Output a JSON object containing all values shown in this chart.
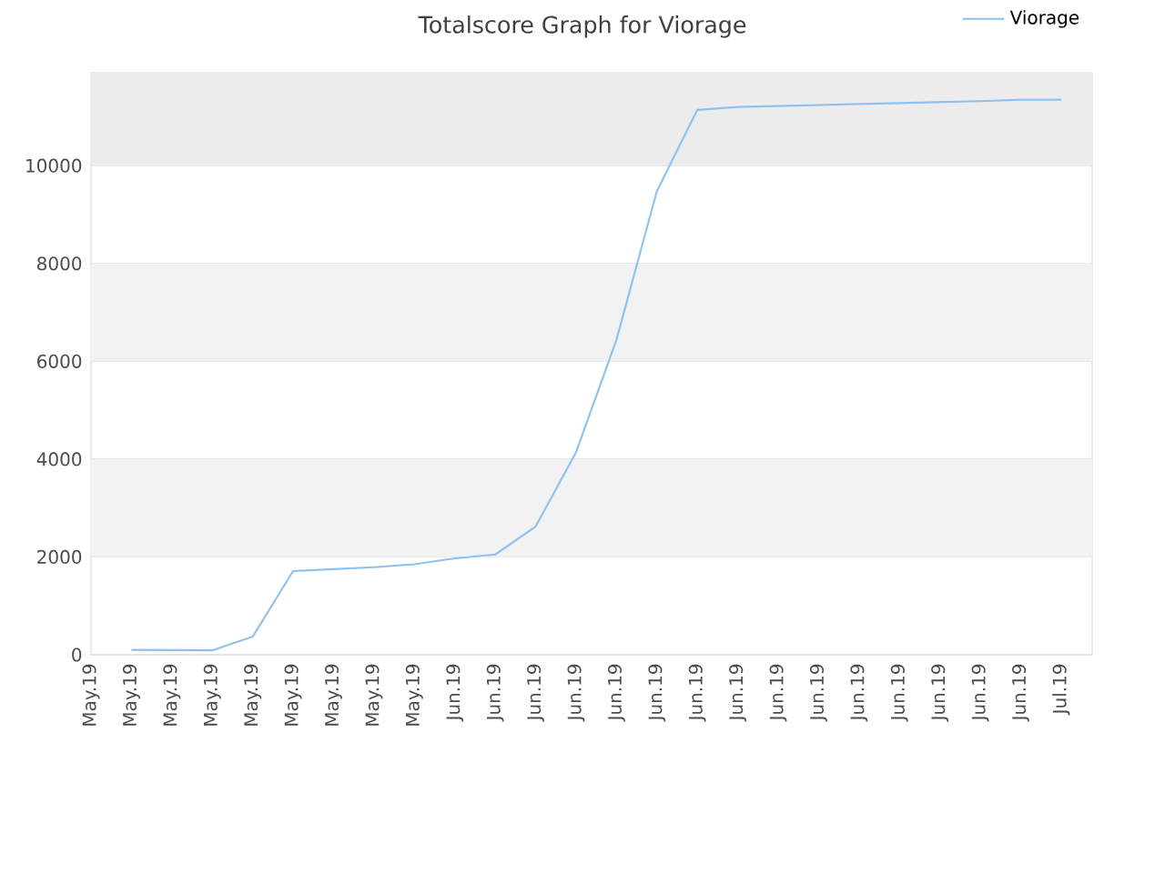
{
  "chart_data": {
    "type": "line",
    "title": "Totalscore Graph for Viorage",
    "categories": [
      "May.19",
      "May.19",
      "May.19",
      "May.19",
      "May.19",
      "May.19",
      "May.19",
      "May.19",
      "May.19",
      "Jun.19",
      "Jun.19",
      "Jun.19",
      "Jun.19",
      "Jun.19",
      "Jun.19",
      "Jun.19",
      "Jun.19",
      "Jun.19",
      "Jun.19",
      "Jun.19",
      "Jun.19",
      "Jun.19",
      "Jun.19",
      "Jun.19",
      "Jul.19"
    ],
    "series": [
      {
        "name": "Viorage",
        "color": "#8fc1f0",
        "values": [
          null,
          100,
          95,
          90,
          370,
          1710,
          1750,
          1790,
          1850,
          1970,
          2050,
          2620,
          4140,
          6440,
          9480,
          11140,
          11200,
          11220,
          11240,
          11260,
          11280,
          11300,
          11320,
          11350,
          11350
        ]
      }
    ],
    "ylim": [
      0,
      11900
    ],
    "yticks": [
      0,
      2000,
      4000,
      6000,
      8000,
      10000
    ],
    "bands": [
      {
        "axis": "y",
        "from": 2000,
        "to": 4000,
        "color": "#f2f2f2"
      },
      {
        "axis": "y",
        "from": 6000,
        "to": 8000,
        "color": "#f2f2f2"
      },
      {
        "axis": "y",
        "from": 10000,
        "to": 11900,
        "color": "#ececec"
      }
    ],
    "grid": "y",
    "legend": "top right",
    "marker": "none",
    "line_style": "solid"
  }
}
